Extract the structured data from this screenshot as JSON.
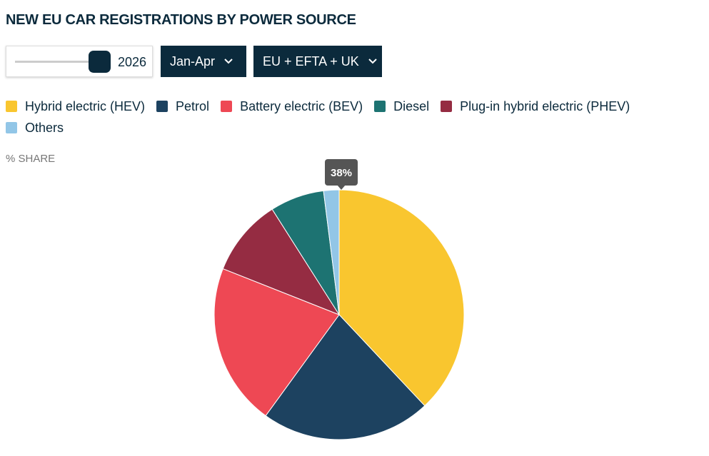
{
  "controls": {
    "year": "2026",
    "period": "Jan-Apr",
    "region": "EU + EFTA + UK"
  },
  "chart_data": {
    "type": "pie",
    "title": "NEW EU CAR REGISTRATIONS BY POWER SOURCE",
    "unit_label": "% SHARE",
    "tooltip": "38%",
    "categories": [
      "Hybrid electric (HEV)",
      "Petrol",
      "Battery electric (BEV)",
      "Plug-in hybrid electric (PHEV)",
      "Diesel",
      "Others"
    ],
    "values": [
      38,
      22,
      21,
      10,
      7,
      2
    ],
    "colors": [
      "#f9c62f",
      "#1d4260",
      "#ee4854",
      "#952c42",
      "#1d7372",
      "#92c6e7"
    ]
  }
}
